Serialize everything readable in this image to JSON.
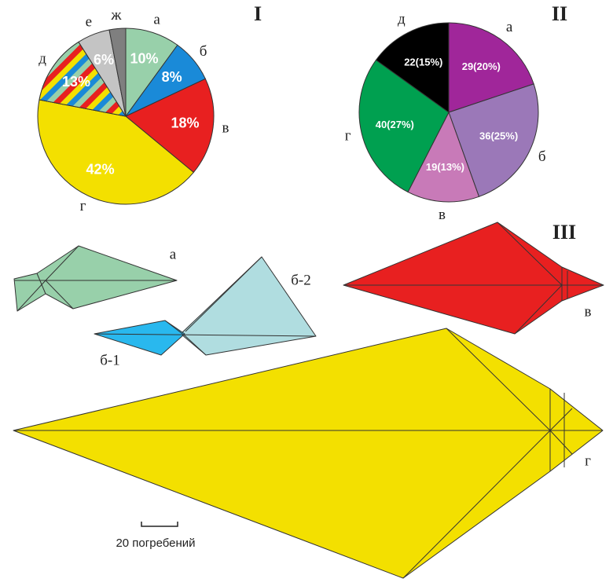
{
  "chart_data": [
    {
      "type": "pie",
      "title": "I",
      "categories": [
        "а",
        "б",
        "в",
        "г",
        "д",
        "е",
        "ж"
      ],
      "values": [
        10,
        8,
        18,
        42,
        13,
        6,
        3
      ],
      "value_labels": [
        "10%",
        "8%",
        "18%",
        "42%",
        "13%",
        "6%",
        null
      ],
      "colors": [
        "#98d0aa",
        "#1a8ad8",
        "#e82020",
        "#f3e000",
        "#98d0aa",
        "#c4c4c4",
        "#7f7f7f"
      ],
      "hatched": [
        false,
        false,
        false,
        false,
        true,
        false,
        false
      ]
    },
    {
      "type": "pie",
      "title": "II",
      "categories": [
        "а",
        "б",
        "в",
        "г",
        "д"
      ],
      "values": [
        29,
        36,
        19,
        40,
        22
      ],
      "value_labels": [
        "29(20%)",
        "36(25%)",
        "19(13%)",
        "40(27%)",
        "22(15%)"
      ],
      "colors": [
        "#a0269a",
        "#9b78b8",
        "#c87ab8",
        "#00a050",
        "#000000"
      ],
      "hatched": [
        false,
        false,
        false,
        false,
        false
      ]
    }
  ],
  "figure": {
    "panel_label": "III",
    "shape_labels": [
      "а",
      "б-1",
      "б-2",
      "в",
      "г"
    ],
    "scale_label": "20 погребений"
  }
}
